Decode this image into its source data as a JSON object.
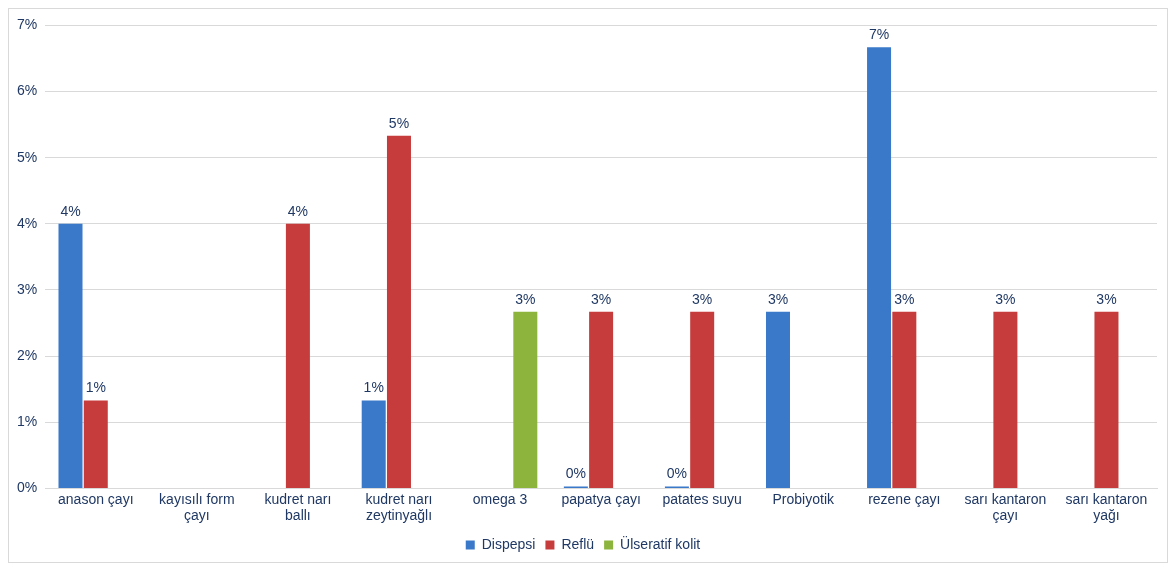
{
  "chart_data": {
    "type": "bar",
    "categories": [
      "anason çayı",
      "kayısılı form çayı",
      "kudret narı ballı",
      "kudret narı zeytinyağlı",
      "omega 3",
      "papatya çayı",
      "patates suyu",
      "Probiyotik",
      "rezene çayı",
      "sarı kantaron çayı",
      "sarı kantaron yağı"
    ],
    "series": [
      {
        "name": "Dispepsi",
        "color": "#3a78c9",
        "values": [
          4,
          null,
          null,
          1.33,
          null,
          0,
          0,
          2.67,
          6.67,
          null,
          null
        ],
        "value_labels": [
          "4%",
          null,
          null,
          "1%",
          null,
          "0%",
          "0%",
          "3%",
          "7%",
          null,
          null
        ]
      },
      {
        "name": "Reflü",
        "color": "#c63b3b",
        "values": [
          1.33,
          null,
          4,
          5.33,
          null,
          2.67,
          2.67,
          null,
          2.67,
          2.67,
          2.67
        ],
        "value_labels": [
          "1%",
          null,
          "4%",
          "5%",
          null,
          "3%",
          "3%",
          null,
          "3%",
          "3%",
          "3%"
        ]
      },
      {
        "name": "Ülseratif kolit",
        "color": "#8db43c",
        "values": [
          null,
          null,
          null,
          null,
          2.67,
          null,
          null,
          null,
          null,
          null,
          null
        ],
        "value_labels": [
          null,
          null,
          null,
          null,
          "3%",
          null,
          null,
          null,
          null,
          null,
          null
        ]
      }
    ],
    "ylim": [
      0,
      7
    ],
    "yticks": [
      {
        "value": 0,
        "label": "0%"
      },
      {
        "value": 1,
        "label": "1%"
      },
      {
        "value": 2,
        "label": "2%"
      },
      {
        "value": 3,
        "label": "3%"
      },
      {
        "value": 4,
        "label": "4%"
      },
      {
        "value": 5,
        "label": "5%"
      },
      {
        "value": 6,
        "label": "6%"
      },
      {
        "value": 7,
        "label": "7%"
      }
    ],
    "grid": "y",
    "legend": "bottom"
  }
}
